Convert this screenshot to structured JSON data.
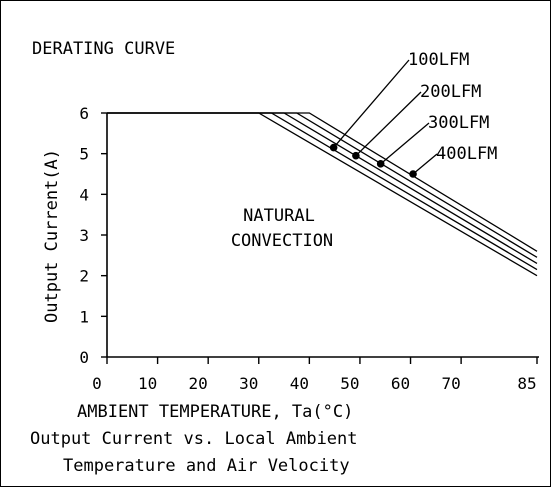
{
  "chart_data": {
    "type": "line",
    "title": "DERATING CURVE",
    "xlabel": "AMBIENT TEMPERATURE, Ta(°C)",
    "ylabel": "Output Current(A)",
    "caption_lines": [
      "Output Current vs. Local Ambient",
      "Temperature and Air Velocity"
    ],
    "xlim": [
      0,
      85
    ],
    "ylim": [
      0,
      6
    ],
    "x_ticks": [
      0,
      10,
      20,
      30,
      40,
      50,
      60,
      70,
      85
    ],
    "y_ticks": [
      0,
      1,
      2,
      3,
      4,
      5,
      6
    ],
    "grid": false,
    "region_label_lines": [
      "NATURAL",
      "CONVECTION"
    ],
    "series": [
      {
        "x": [
          0,
          30,
          85
        ],
        "y": [
          6,
          6,
          2.0
        ]
      },
      {
        "x": [
          0,
          32.5,
          85
        ],
        "y": [
          6,
          6,
          2.15
        ]
      },
      {
        "x": [
          0,
          35,
          85
        ],
        "y": [
          6,
          6,
          2.3
        ]
      },
      {
        "x": [
          0,
          37.5,
          85
        ],
        "y": [
          6,
          6,
          2.45
        ]
      },
      {
        "x": [
          0,
          40,
          85
        ],
        "y": [
          6,
          6,
          2.6
        ]
      }
    ],
    "annotations": [
      {
        "text": "100LFM",
        "x": 44.8,
        "y": 5.15
      },
      {
        "text": "200LFM",
        "x": 49.2,
        "y": 4.95
      },
      {
        "text": "300LFM",
        "x": 54.1,
        "y": 4.75
      },
      {
        "text": "400LFM",
        "x": 60.5,
        "y": 4.5
      }
    ]
  }
}
